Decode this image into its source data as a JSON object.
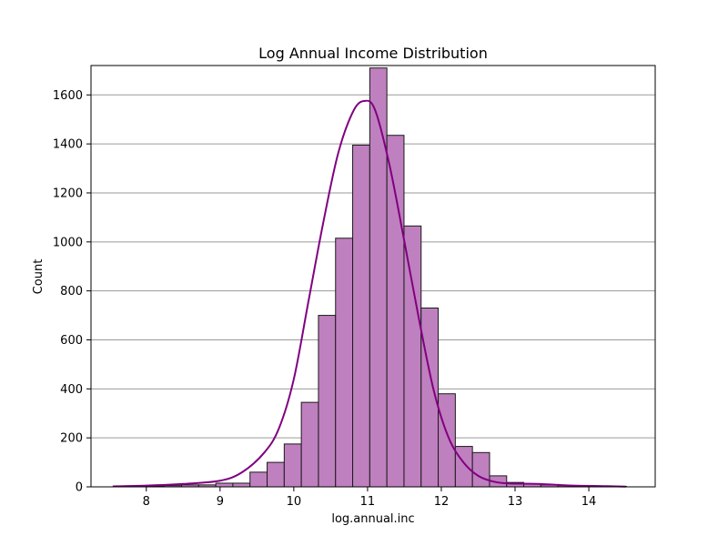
{
  "chart_data": {
    "type": "bar",
    "title": "Log Annual Income Distribution",
    "xlabel": "log.annual.inc",
    "ylabel": "Count",
    "xlim": [
      7.25,
      14.9
    ],
    "ylim": [
      0,
      1720
    ],
    "xticks": [
      8,
      9,
      10,
      11,
      12,
      13,
      14
    ],
    "yticks": [
      0,
      200,
      400,
      600,
      800,
      1000,
      1200,
      1400,
      1600
    ],
    "grid": "horizontal",
    "legend": "none",
    "bins": {
      "start": 7.55,
      "width": 0.232,
      "counts": [
        3,
        0,
        2,
        5,
        8,
        8,
        15,
        15,
        60,
        100,
        175,
        345,
        700,
        1015,
        1395,
        1710,
        1435,
        1065,
        730,
        380,
        165,
        140,
        45,
        18,
        12,
        8,
        5,
        3,
        3,
        2
      ]
    },
    "kde": {
      "x": [
        7.55,
        8.0,
        8.5,
        9.0,
        9.3,
        9.6,
        9.8,
        10.0,
        10.2,
        10.4,
        10.6,
        10.8,
        10.95,
        11.1,
        11.3,
        11.5,
        11.7,
        11.9,
        12.1,
        12.3,
        12.5,
        12.7,
        12.9,
        13.3,
        13.8,
        14.2,
        14.5
      ],
      "y": [
        2,
        5,
        12,
        25,
        60,
        140,
        240,
        440,
        760,
        1080,
        1360,
        1530,
        1575,
        1540,
        1310,
        1000,
        680,
        390,
        200,
        100,
        45,
        22,
        14,
        12,
        5,
        3,
        1
      ]
    },
    "colors": {
      "bar_fill": "#bf80bf",
      "bar_edge": "#1a1a1a",
      "kde_line": "#800080",
      "grid": "#9a9a9a"
    }
  }
}
